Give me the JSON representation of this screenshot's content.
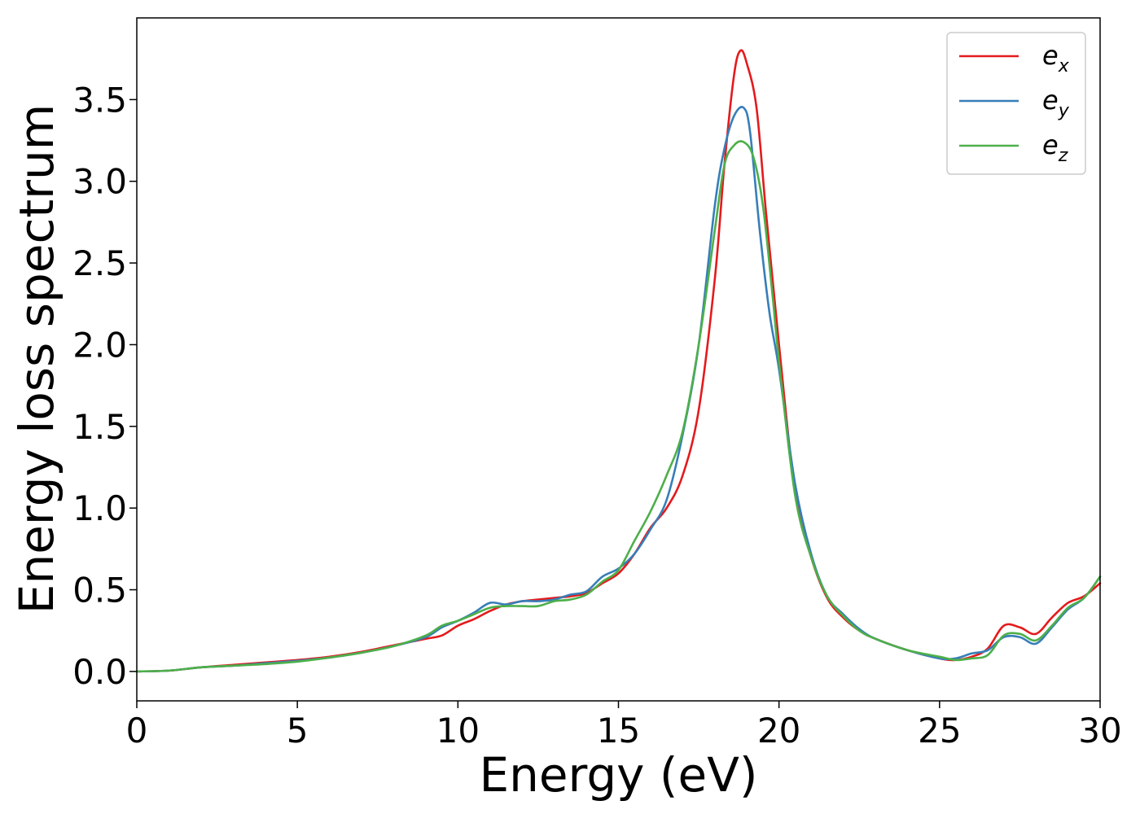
{
  "chart_data": {
    "type": "line",
    "title": "",
    "xlabel": "Energy (eV)",
    "ylabel": "Energy loss spectrum",
    "xlim": [
      0,
      30
    ],
    "ylim": [
      -0.18,
      4.0
    ],
    "xticks": [
      0,
      5,
      10,
      15,
      20,
      25,
      30
    ],
    "yticks": [
      0.0,
      0.5,
      1.0,
      1.5,
      2.0,
      2.5,
      3.0,
      3.5
    ],
    "xtick_labels": [
      "0",
      "5",
      "10",
      "15",
      "20",
      "25",
      "30"
    ],
    "ytick_labels": [
      "0.0",
      "0.5",
      "1.0",
      "1.5",
      "2.0",
      "2.5",
      "3.0",
      "3.5"
    ],
    "grid": false,
    "legend_position": "top-right",
    "series": [
      {
        "name": "e_x",
        "label_base": "e",
        "label_sub": "x",
        "color": "#e41a1c",
        "x": [
          0,
          1,
          2,
          3,
          4,
          5,
          6,
          7,
          8,
          9,
          9.5,
          10,
          10.5,
          11,
          11.5,
          12,
          12.5,
          13,
          13.5,
          14,
          14.5,
          15,
          15.5,
          16,
          16.5,
          17,
          17.5,
          18,
          18.3,
          18.6,
          18.8,
          19.0,
          19.3,
          19.6,
          20,
          20.5,
          21,
          21.5,
          22,
          22.5,
          23,
          24,
          25,
          25.5,
          26,
          26.5,
          27,
          27.5,
          28,
          28.5,
          29,
          29.5,
          30
        ],
        "y": [
          0,
          0.005,
          0.025,
          0.04,
          0.055,
          0.07,
          0.09,
          0.12,
          0.16,
          0.2,
          0.22,
          0.28,
          0.32,
          0.37,
          0.41,
          0.43,
          0.44,
          0.45,
          0.46,
          0.48,
          0.54,
          0.6,
          0.72,
          0.88,
          1.0,
          1.2,
          1.6,
          2.4,
          3.1,
          3.65,
          3.8,
          3.72,
          3.45,
          2.8,
          2.0,
          1.1,
          0.7,
          0.45,
          0.33,
          0.25,
          0.2,
          0.13,
          0.08,
          0.07,
          0.09,
          0.14,
          0.28,
          0.27,
          0.23,
          0.33,
          0.42,
          0.46,
          0.54
        ]
      },
      {
        "name": "e_y",
        "label_base": "e",
        "label_sub": "y",
        "color": "#377eb8",
        "x": [
          0,
          1,
          2,
          3,
          4,
          5,
          6,
          7,
          8,
          9,
          9.5,
          10,
          10.5,
          11,
          11.5,
          12,
          12.5,
          13,
          13.5,
          14,
          14.5,
          15,
          15.5,
          16,
          16.5,
          17,
          17.5,
          18,
          18.3,
          18.6,
          18.9,
          19.1,
          19.4,
          19.7,
          20,
          20.5,
          21,
          21.5,
          22,
          22.5,
          23,
          24,
          25,
          25.5,
          26,
          26.5,
          27,
          27.5,
          28,
          28.5,
          29,
          29.5,
          30
        ],
        "y": [
          0,
          0.005,
          0.025,
          0.035,
          0.05,
          0.065,
          0.085,
          0.115,
          0.155,
          0.21,
          0.27,
          0.31,
          0.36,
          0.42,
          0.41,
          0.43,
          0.43,
          0.44,
          0.47,
          0.49,
          0.58,
          0.63,
          0.72,
          0.87,
          1.05,
          1.45,
          2.0,
          2.85,
          3.2,
          3.4,
          3.45,
          3.3,
          2.7,
          2.2,
          1.85,
          1.15,
          0.72,
          0.46,
          0.35,
          0.26,
          0.2,
          0.13,
          0.08,
          0.08,
          0.11,
          0.13,
          0.21,
          0.21,
          0.17,
          0.27,
          0.38,
          0.45,
          0.58
        ]
      },
      {
        "name": "e_z",
        "label_base": "e",
        "label_sub": "z",
        "color": "#4daf4a",
        "x": [
          0,
          1,
          2,
          3,
          4,
          5,
          6,
          7,
          8,
          9,
          9.5,
          10,
          10.5,
          11,
          11.5,
          12,
          12.5,
          13,
          13.5,
          14,
          14.5,
          15,
          15.5,
          16,
          16.5,
          17,
          17.5,
          18,
          18.3,
          18.6,
          18.9,
          19.2,
          19.5,
          19.8,
          20,
          20.5,
          21,
          21.5,
          22,
          22.5,
          23,
          24,
          25,
          25.5,
          26,
          26.5,
          27,
          27.5,
          28,
          28.5,
          29,
          29.5,
          30
        ],
        "y": [
          0,
          0.005,
          0.025,
          0.035,
          0.045,
          0.06,
          0.085,
          0.115,
          0.155,
          0.22,
          0.28,
          0.31,
          0.35,
          0.39,
          0.4,
          0.4,
          0.4,
          0.43,
          0.44,
          0.47,
          0.55,
          0.62,
          0.8,
          0.98,
          1.2,
          1.47,
          2.0,
          2.7,
          3.1,
          3.22,
          3.24,
          3.15,
          2.85,
          2.3,
          1.9,
          1.08,
          0.7,
          0.46,
          0.34,
          0.25,
          0.2,
          0.13,
          0.09,
          0.07,
          0.08,
          0.1,
          0.22,
          0.23,
          0.19,
          0.28,
          0.39,
          0.45,
          0.58
        ]
      }
    ]
  }
}
